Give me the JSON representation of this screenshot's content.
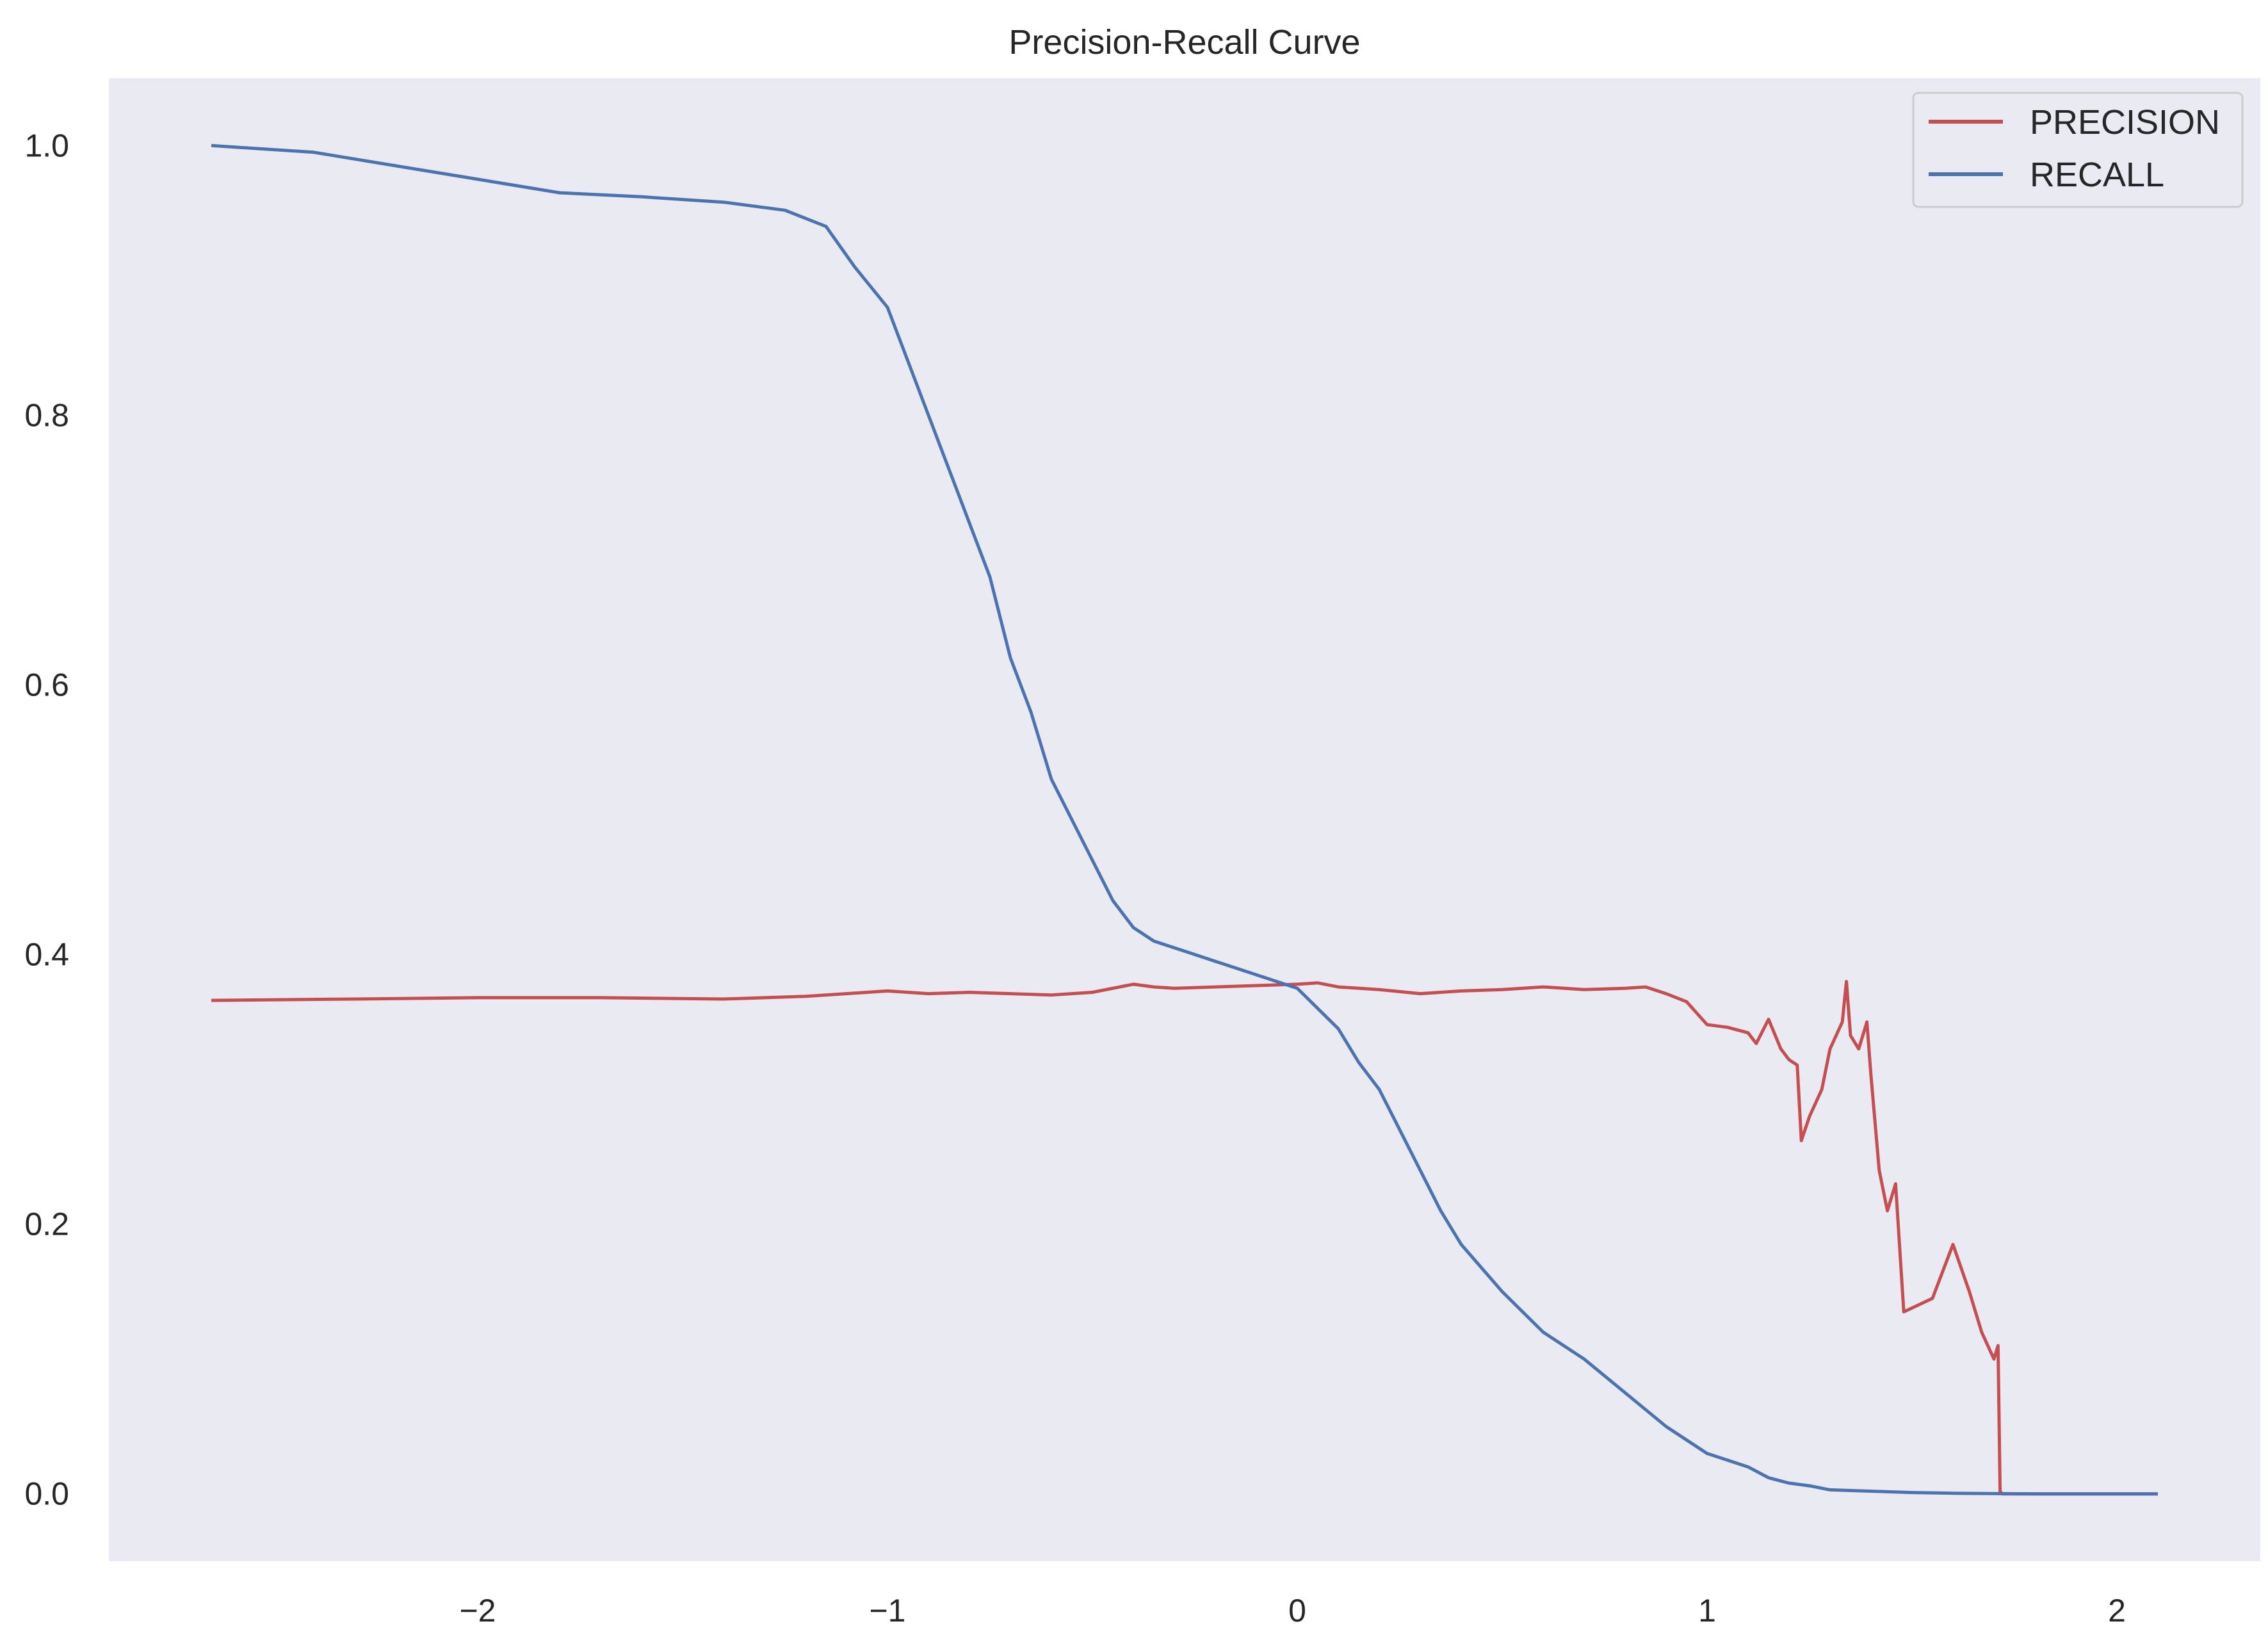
{
  "chart_data": {
    "type": "line",
    "title": "Precision-Recall Curve",
    "xlabel": "",
    "ylabel": "",
    "xlim": [
      -2.9,
      2.35
    ],
    "ylim": [
      -0.05,
      1.05
    ],
    "x_ticks": [
      -2,
      -1,
      0,
      1,
      2
    ],
    "x_tick_labels": [
      "−2",
      "−1",
      "0",
      "1",
      "2"
    ],
    "y_ticks": [
      0.0,
      0.2,
      0.4,
      0.6,
      0.8,
      1.0
    ],
    "y_tick_labels": [
      "0.0",
      "0.2",
      "0.4",
      "0.6",
      "0.8",
      "1.0"
    ],
    "grid": false,
    "background": "#eaeaf2",
    "legend_position": "top-right",
    "series": [
      {
        "name": "PRECISION",
        "color": "#c44e52",
        "x": [
          -2.65,
          -2.3,
          -2.0,
          -1.7,
          -1.4,
          -1.2,
          -1.1,
          -1.0,
          -0.9,
          -0.8,
          -0.7,
          -0.6,
          -0.5,
          -0.4,
          -0.35,
          -0.3,
          -0.2,
          -0.1,
          0.0,
          0.05,
          0.1,
          0.2,
          0.3,
          0.4,
          0.5,
          0.6,
          0.7,
          0.8,
          0.85,
          0.9,
          0.95,
          1.0,
          1.05,
          1.1,
          1.12,
          1.15,
          1.18,
          1.2,
          1.22,
          1.23,
          1.25,
          1.28,
          1.3,
          1.33,
          1.34,
          1.35,
          1.37,
          1.39,
          1.4,
          1.42,
          1.44,
          1.46,
          1.48,
          1.55,
          1.6,
          1.64,
          1.67,
          1.7,
          1.71,
          1.715,
          1.72,
          1.8,
          1.9,
          2.0,
          2.1
        ],
        "y": [
          0.366,
          0.367,
          0.368,
          0.368,
          0.367,
          0.369,
          0.371,
          0.373,
          0.371,
          0.372,
          0.371,
          0.37,
          0.372,
          0.378,
          0.376,
          0.375,
          0.376,
          0.377,
          0.378,
          0.379,
          0.376,
          0.374,
          0.371,
          0.373,
          0.374,
          0.376,
          0.374,
          0.375,
          0.376,
          0.371,
          0.365,
          0.348,
          0.346,
          0.342,
          0.334,
          0.352,
          0.33,
          0.322,
          0.318,
          0.262,
          0.28,
          0.3,
          0.33,
          0.35,
          0.38,
          0.34,
          0.33,
          0.35,
          0.31,
          0.24,
          0.21,
          0.23,
          0.135,
          0.145,
          0.185,
          0.15,
          0.12,
          0.1,
          0.11,
          0.002,
          0.0,
          0.0,
          0.0,
          0.0,
          0.0
        ]
      },
      {
        "name": "RECALL",
        "color": "#4c72b0",
        "x": [
          -2.65,
          -2.4,
          -2.2,
          -2.0,
          -1.8,
          -1.6,
          -1.4,
          -1.25,
          -1.15,
          -1.08,
          -1.0,
          -0.95,
          -0.9,
          -0.85,
          -0.8,
          -0.75,
          -0.7,
          -0.65,
          -0.6,
          -0.55,
          -0.5,
          -0.45,
          -0.4,
          -0.35,
          -0.3,
          -0.25,
          -0.2,
          -0.1,
          0.0,
          0.05,
          0.1,
          0.15,
          0.2,
          0.25,
          0.3,
          0.35,
          0.4,
          0.5,
          0.6,
          0.7,
          0.8,
          0.9,
          1.0,
          1.1,
          1.15,
          1.2,
          1.25,
          1.3,
          1.4,
          1.5,
          1.6,
          1.7,
          1.8,
          2.0,
          2.1
        ],
        "y": [
          1.0,
          0.995,
          0.985,
          0.975,
          0.965,
          0.962,
          0.958,
          0.952,
          0.94,
          0.91,
          0.88,
          0.84,
          0.8,
          0.76,
          0.72,
          0.68,
          0.62,
          0.58,
          0.53,
          0.5,
          0.47,
          0.44,
          0.42,
          0.41,
          0.405,
          0.4,
          0.395,
          0.385,
          0.375,
          0.36,
          0.345,
          0.32,
          0.3,
          0.27,
          0.24,
          0.21,
          0.185,
          0.15,
          0.12,
          0.1,
          0.075,
          0.05,
          0.03,
          0.02,
          0.012,
          0.008,
          0.006,
          0.003,
          0.002,
          0.001,
          0.0005,
          0.0002,
          0.0,
          0.0,
          0.0
        ]
      }
    ]
  }
}
